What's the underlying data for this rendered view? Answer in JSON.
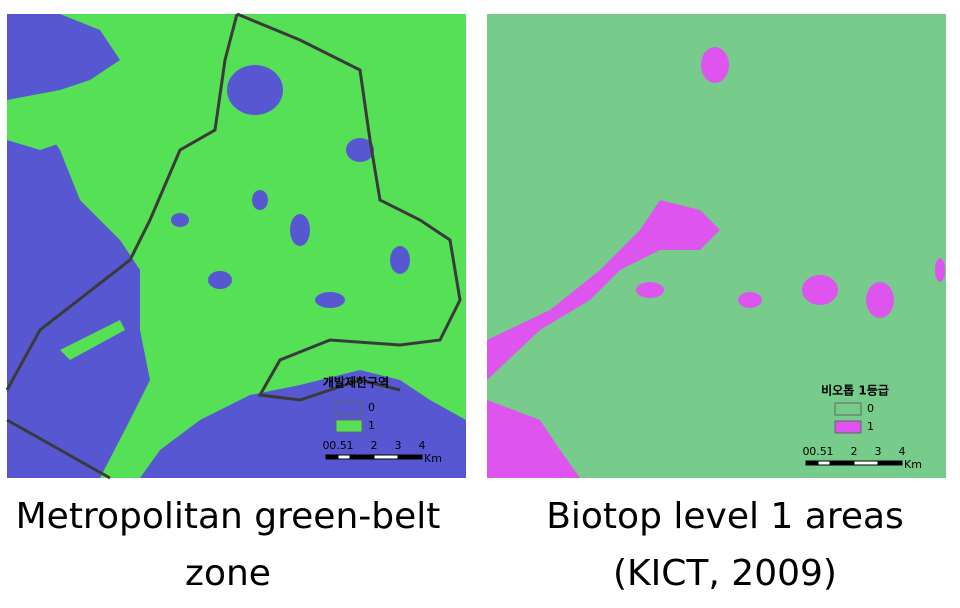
{
  "panels": [
    {
      "legend": {
        "title": "개발제한구역",
        "items": [
          {
            "label": "0",
            "color": "#5757d2"
          },
          {
            "label": "1",
            "color": "#55e055"
          }
        ]
      },
      "scale": {
        "ticks": [
          0,
          0.5,
          1,
          2,
          3,
          4
        ],
        "unit": "Km"
      },
      "caption": [
        "Metropolitan  green-belt",
        "zone"
      ]
    },
    {
      "legend": {
        "title": "비오톱 1등급",
        "items": [
          {
            "label": "0",
            "color": "#77cc8c"
          },
          {
            "label": "1",
            "color": "#dd55ee"
          }
        ]
      },
      "scale": {
        "ticks": [
          0,
          0.5,
          1,
          2,
          3,
          4
        ],
        "unit": "Km"
      },
      "caption": [
        "Biotop level 1 areas",
        "(KICT, 2009)"
      ]
    }
  ]
}
